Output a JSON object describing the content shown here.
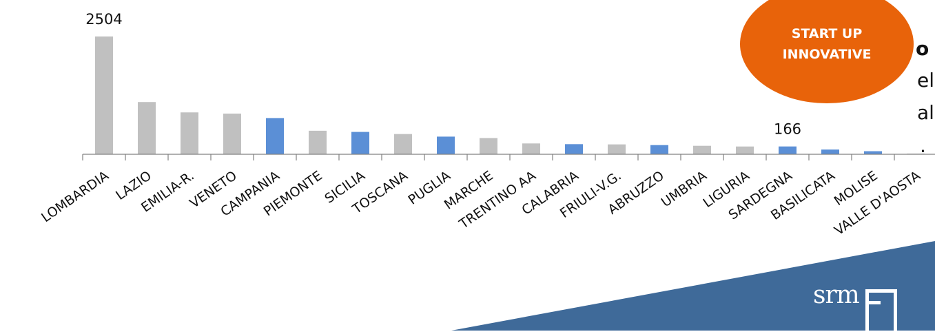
{
  "side_text": {
    "line1": "o",
    "line2": "el",
    "line3": "al",
    "line4": "."
  },
  "badge": {
    "line1": "START UP",
    "line2": "INNOVATIVE",
    "color": "#e8630a"
  },
  "logo": {
    "text": "srm",
    "color": "#3f6a99"
  },
  "chart_data": {
    "type": "bar",
    "categories": [
      "LOMBARDIA",
      "LAZIO",
      "EMILIA-R.",
      "VENETO",
      "CAMPANIA",
      "PIEMONTE",
      "SICILIA",
      "TOSCANA",
      "PUGLIA",
      "MARCHE",
      "TRENTINO AA",
      "CALABRIA",
      "FRIULI-V.G.",
      "ABRUZZO",
      "UMBRIA",
      "LIGURIA",
      "SARDEGNA",
      "BASILICATA",
      "MOLISE",
      "VALLE D'AOSTA"
    ],
    "values": [
      2504,
      1110,
      890,
      865,
      770,
      500,
      475,
      430,
      375,
      345,
      230,
      215,
      210,
      195,
      180,
      165,
      166,
      100,
      65,
      10
    ],
    "highlighted": [
      false,
      false,
      false,
      false,
      true,
      false,
      true,
      false,
      true,
      false,
      false,
      true,
      false,
      true,
      false,
      false,
      true,
      true,
      true,
      false
    ],
    "data_labels": {
      "0": "2504",
      "16": "166"
    },
    "colors": {
      "default": "#c0c0c0",
      "highlight": "#5b8fd6"
    },
    "ylim": [
      0,
      2504
    ],
    "grid": false,
    "legend": "none"
  }
}
